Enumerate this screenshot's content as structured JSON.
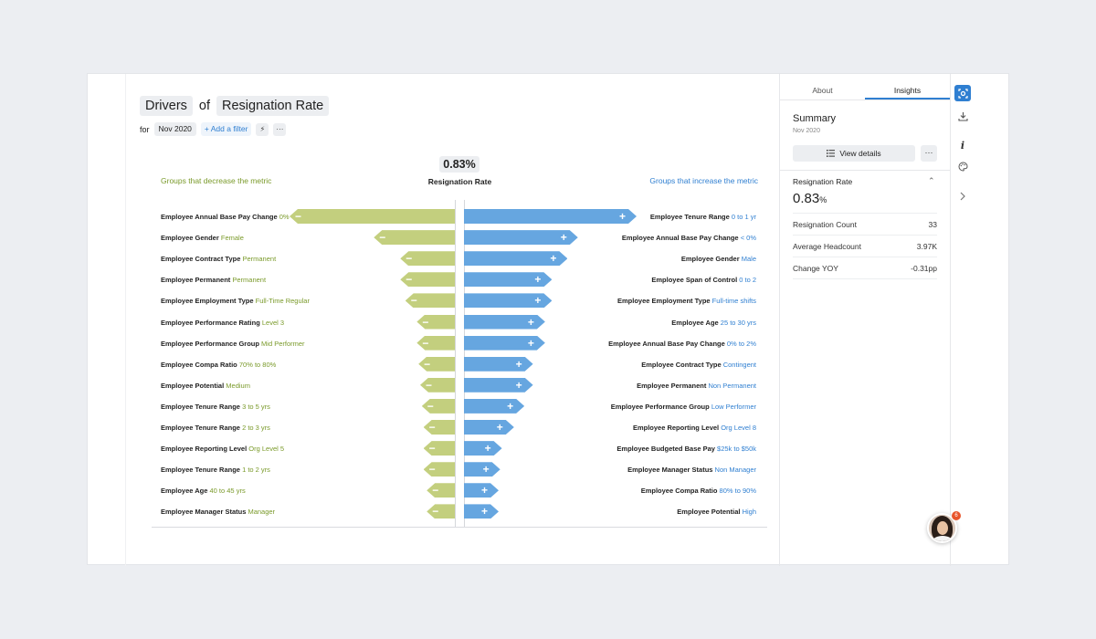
{
  "header": {
    "title_chip_1": "Drivers",
    "title_of": "of",
    "title_chip_2": "Resignation Rate",
    "for_label": "for",
    "period": "Nov 2020",
    "add_filter": "+ Add a filter",
    "icon_lightning": "⚡",
    "icon_more": "···"
  },
  "chart": {
    "headline_value": "0.83%",
    "headline_label": "Resignation Rate",
    "decrease_heading": "Groups that decrease the metric",
    "increase_heading": "Groups that increase the metric"
  },
  "chart_data": {
    "type": "bar",
    "title": "Drivers of Resignation Rate",
    "decrease": [
      {
        "dimension": "Employee Annual Base Pay Change",
        "group": "0%",
        "magnitude": 1.0
      },
      {
        "dimension": "Employee Gender",
        "group": "Female",
        "magnitude": 0.49
      },
      {
        "dimension": "Employee Contract Type",
        "group": "Permanent",
        "magnitude": 0.33
      },
      {
        "dimension": "Employee Permanent",
        "group": "Permanent",
        "magnitude": 0.33
      },
      {
        "dimension": "Employee Employment Type",
        "group": "Full-Time Regular",
        "magnitude": 0.3
      },
      {
        "dimension": "Employee Performance Rating",
        "group": "Level 3",
        "magnitude": 0.23
      },
      {
        "dimension": "Employee Performance Group",
        "group": "Mid Performer",
        "magnitude": 0.23
      },
      {
        "dimension": "Employee Compa Ratio",
        "group": "70% to 80%",
        "magnitude": 0.22
      },
      {
        "dimension": "Employee Potential",
        "group": "Medium",
        "magnitude": 0.21
      },
      {
        "dimension": "Employee Tenure Range",
        "group": "3 to 5 yrs",
        "magnitude": 0.2
      },
      {
        "dimension": "Employee Tenure Range",
        "group": "2 to 3 yrs",
        "magnitude": 0.19
      },
      {
        "dimension": "Employee Reporting Level",
        "group": "Org Level 5",
        "magnitude": 0.19
      },
      {
        "dimension": "Employee Tenure Range",
        "group": "1 to 2 yrs",
        "magnitude": 0.19
      },
      {
        "dimension": "Employee Age",
        "group": "40 to 45 yrs",
        "magnitude": 0.17
      },
      {
        "dimension": "Employee Manager Status",
        "group": "Manager",
        "magnitude": 0.17
      }
    ],
    "increase": [
      {
        "dimension": "Employee Tenure Range",
        "group": "0 to 1 yr",
        "magnitude": 1.0
      },
      {
        "dimension": "Employee Annual Base Pay Change",
        "group": "< 0%",
        "magnitude": 0.66
      },
      {
        "dimension": "Employee Gender",
        "group": "Male",
        "magnitude": 0.6
      },
      {
        "dimension": "Employee Span of Control",
        "group": "0 to 2",
        "magnitude": 0.51
      },
      {
        "dimension": "Employee Employment Type",
        "group": "Full-time shifts",
        "magnitude": 0.51
      },
      {
        "dimension": "Employee Age",
        "group": "25 to 30 yrs",
        "magnitude": 0.47
      },
      {
        "dimension": "Employee Annual Base Pay Change",
        "group": "0% to 2%",
        "magnitude": 0.47
      },
      {
        "dimension": "Employee Contract Type",
        "group": "Contingent",
        "magnitude": 0.4
      },
      {
        "dimension": "Employee Permanent",
        "group": "Non Permanent",
        "magnitude": 0.4
      },
      {
        "dimension": "Employee Performance Group",
        "group": "Low Performer",
        "magnitude": 0.35
      },
      {
        "dimension": "Employee Reporting Level",
        "group": "Org Level 8",
        "magnitude": 0.29
      },
      {
        "dimension": "Employee Budgeted Base Pay",
        "group": "$25k to $50k",
        "magnitude": 0.22
      },
      {
        "dimension": "Employee Manager Status",
        "group": "Non Manager",
        "magnitude": 0.21
      },
      {
        "dimension": "Employee Compa Ratio",
        "group": "80% to 90%",
        "magnitude": 0.2
      },
      {
        "dimension": "Employee Potential",
        "group": "High",
        "magnitude": 0.2
      }
    ]
  },
  "panel": {
    "tab_about": "About",
    "tab_insights": "Insights",
    "summary_title": "Summary",
    "summary_date": "Nov 2020",
    "view_details": "View details",
    "more": "···",
    "metric_title": "Resignation Rate",
    "metric_value": "0.83",
    "metric_unit": "%",
    "rows": [
      {
        "label": "Resignation Count",
        "value": "33"
      },
      {
        "label": "Average Headcount",
        "value": "3.97K"
      },
      {
        "label": "Change YOY",
        "value": "-0.31pp"
      }
    ]
  },
  "notifications": {
    "badge_count": "6"
  },
  "colors": {
    "decrease": "#c3cf7e",
    "increase": "#66a6e0",
    "accent": "#2f7fd1"
  }
}
